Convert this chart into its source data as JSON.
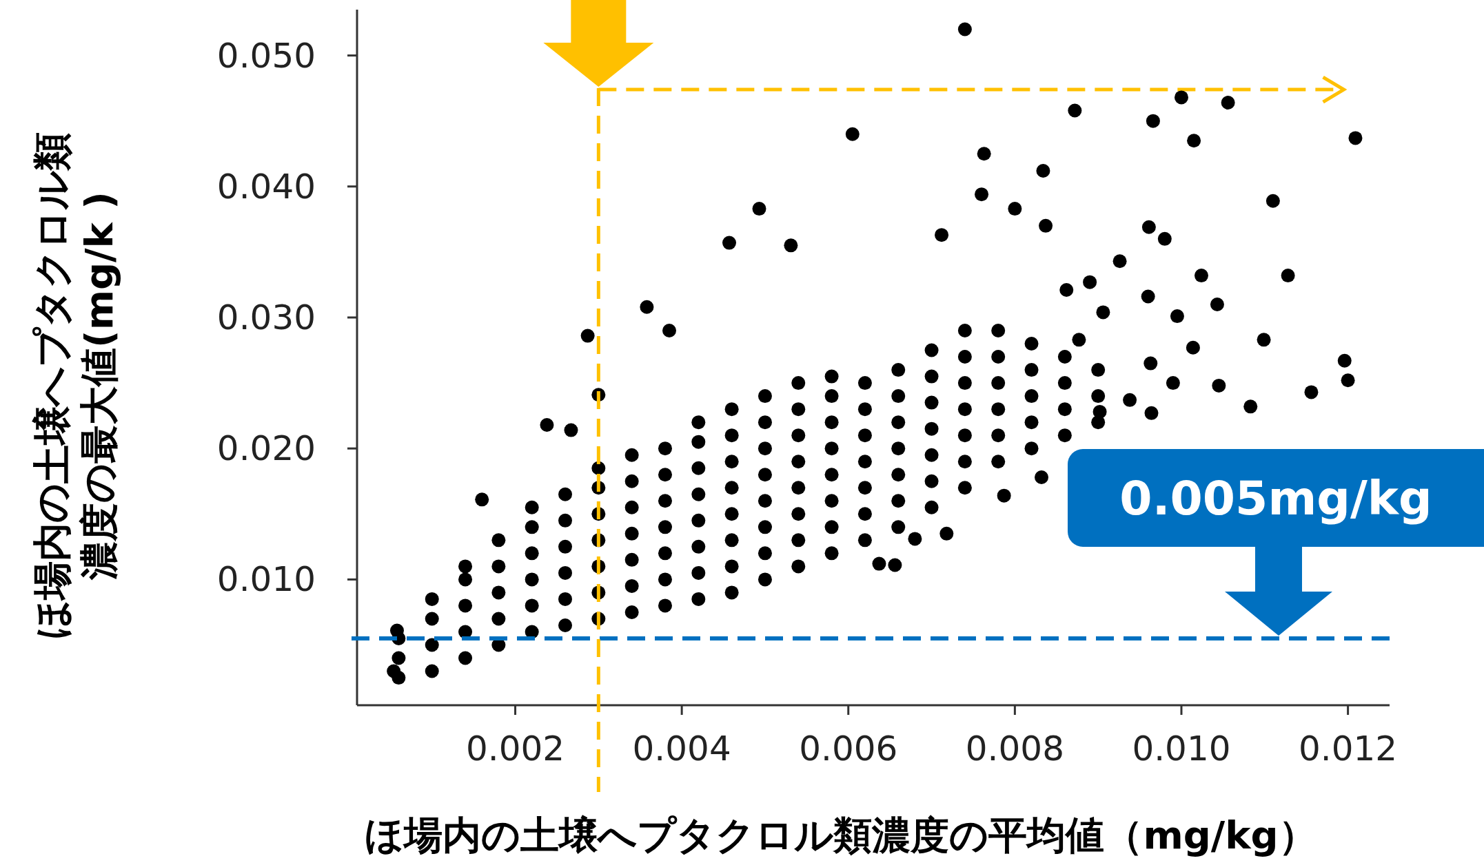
{
  "chart_data": {
    "type": "scatter",
    "xlabel": "ほ場内の土壌へプタクロル類濃度の平均値（mg/kg）",
    "ylabel": "ほ場内の土壌へプタクロル類濃度の最大値(mg/k )",
    "xlim": [
      0.0001,
      0.0125
    ],
    "ylim": [
      0.0004,
      0.0535
    ],
    "xticks": [
      {
        "value": 0.002,
        "label": "0.002"
      },
      {
        "value": 0.004,
        "label": "0.004"
      },
      {
        "value": 0.006,
        "label": "0.006"
      },
      {
        "value": 0.008,
        "label": "0.008"
      },
      {
        "value": 0.01,
        "label": "0.010"
      },
      {
        "value": 0.012,
        "label": "0.012"
      }
    ],
    "yticks": [
      {
        "value": 0.01,
        "label": "0.010"
      },
      {
        "value": 0.02,
        "label": "0.020"
      },
      {
        "value": 0.03,
        "label": "0.030"
      },
      {
        "value": 0.04,
        "label": "0.040"
      },
      {
        "value": 0.05,
        "label": "0.050"
      }
    ],
    "marker": "circle",
    "grid": false,
    "ref_lines": [
      {
        "axis": "y",
        "value": 0.0055,
        "label": "0.005mg/kg",
        "color": "#0070c0",
        "line_style": "dashed"
      },
      {
        "axis": "x",
        "value": 0.003,
        "color": "#ffc000",
        "line_style": "dashed"
      }
    ],
    "series": [
      {
        "type": "line",
        "color": "#ffc000",
        "line_style": "dashed",
        "marker": "none",
        "x": [
          0.003,
          0.01195
        ],
        "values": [
          0.0474,
          0.0474
        ]
      },
      {
        "color": "#000000",
        "x": [
          0.0074,
          0.00605,
          0.00763,
          0.00872,
          0.01,
          0.01056,
          0.00966,
          0.01015,
          0.01209,
          0.0076,
          0.00834,
          0.008,
          0.00493,
          0.0111,
          0.00457,
          0.00531,
          0.00961,
          0.0098,
          0.00712,
          0.00837,
          0.00926,
          0.01024,
          0.01128,
          0.01156,
          0.012,
          0.01196,
          0.01099,
          0.01083,
          0.01043,
          0.00995,
          0.0099,
          0.01045,
          0.01014,
          0.00963,
          0.0096,
          0.00906,
          0.0089,
          0.00862,
          0.00877,
          0.00902,
          0.00964,
          0.00938,
          0.00787,
          0.00832,
          0.00718,
          0.0068,
          0.00637,
          0.00656,
          0.00358,
          0.00385,
          0.00287,
          0.003,
          0.00238,
          0.00267,
          0.0016,
          0.00058,
          0.00054
        ],
        "values": [
          0.052,
          0.044,
          0.0425,
          0.0458,
          0.0468,
          0.0464,
          0.045,
          0.0435,
          0.0437,
          0.0394,
          0.0412,
          0.0383,
          0.0383,
          0.0389,
          0.0357,
          0.0355,
          0.0369,
          0.036,
          0.0363,
          0.037,
          0.0343,
          0.0332,
          0.0332,
          0.0243,
          0.0252,
          0.0267,
          0.0283,
          0.0232,
          0.031,
          0.0301,
          0.025,
          0.0248,
          0.0277,
          0.0265,
          0.0316,
          0.0304,
          0.0327,
          0.0321,
          0.0283,
          0.0228,
          0.0227,
          0.0237,
          0.0164,
          0.0178,
          0.0135,
          0.0131,
          0.0112,
          0.0111,
          0.0308,
          0.029,
          0.0286,
          0.0241,
          0.0218,
          0.0214,
          0.0161,
          0.0061,
          0.003
        ]
      },
      {
        "color": "#000000",
        "x": [
          0.0006,
          0.0006,
          0.0006
        ],
        "values": [
          0.0025,
          0.004,
          0.0055
        ]
      },
      {
        "color": "#000000",
        "x": [
          0.001,
          0.001,
          0.001,
          0.001
        ],
        "values": [
          0.003,
          0.005,
          0.007,
          0.0085
        ]
      },
      {
        "color": "#000000",
        "x": [
          0.0014,
          0.0014,
          0.0014,
          0.0014,
          0.0014
        ],
        "values": [
          0.004,
          0.006,
          0.008,
          0.01,
          0.011
        ]
      },
      {
        "color": "#000000",
        "x": [
          0.0018,
          0.0018,
          0.0018,
          0.0018,
          0.0018
        ],
        "values": [
          0.005,
          0.007,
          0.009,
          0.011,
          0.013
        ]
      },
      {
        "color": "#000000",
        "x": [
          0.0022,
          0.0022,
          0.0022,
          0.0022,
          0.0022,
          0.0022
        ],
        "values": [
          0.006,
          0.008,
          0.01,
          0.012,
          0.014,
          0.0155
        ]
      },
      {
        "color": "#000000",
        "x": [
          0.0026,
          0.0026,
          0.0026,
          0.0026,
          0.0026,
          0.0026
        ],
        "values": [
          0.0065,
          0.0085,
          0.0105,
          0.0125,
          0.0145,
          0.0165
        ]
      },
      {
        "color": "#000000",
        "x": [
          0.003,
          0.003,
          0.003,
          0.003,
          0.003,
          0.003,
          0.003
        ],
        "values": [
          0.007,
          0.009,
          0.011,
          0.013,
          0.015,
          0.017,
          0.0185
        ]
      },
      {
        "color": "#000000",
        "x": [
          0.0034,
          0.0034,
          0.0034,
          0.0034,
          0.0034,
          0.0034,
          0.0034
        ],
        "values": [
          0.0075,
          0.0095,
          0.0115,
          0.0135,
          0.0155,
          0.0175,
          0.0195
        ]
      },
      {
        "color": "#000000",
        "x": [
          0.0038,
          0.0038,
          0.0038,
          0.0038,
          0.0038,
          0.0038,
          0.0038
        ],
        "values": [
          0.008,
          0.01,
          0.012,
          0.014,
          0.016,
          0.018,
          0.02
        ]
      },
      {
        "color": "#000000",
        "x": [
          0.0042,
          0.0042,
          0.0042,
          0.0042,
          0.0042,
          0.0042,
          0.0042,
          0.0042
        ],
        "values": [
          0.0085,
          0.0105,
          0.0125,
          0.0145,
          0.0165,
          0.0185,
          0.0205,
          0.022
        ]
      },
      {
        "color": "#000000",
        "x": [
          0.0046,
          0.0046,
          0.0046,
          0.0046,
          0.0046,
          0.0046,
          0.0046,
          0.0046
        ],
        "values": [
          0.009,
          0.011,
          0.013,
          0.015,
          0.017,
          0.019,
          0.021,
          0.023
        ]
      },
      {
        "color": "#000000",
        "x": [
          0.005,
          0.005,
          0.005,
          0.005,
          0.005,
          0.005,
          0.005,
          0.005
        ],
        "values": [
          0.01,
          0.012,
          0.014,
          0.016,
          0.018,
          0.02,
          0.022,
          0.024
        ]
      },
      {
        "color": "#000000",
        "x": [
          0.0054,
          0.0054,
          0.0054,
          0.0054,
          0.0054,
          0.0054,
          0.0054,
          0.0054
        ],
        "values": [
          0.011,
          0.013,
          0.015,
          0.017,
          0.019,
          0.021,
          0.023,
          0.025
        ]
      },
      {
        "color": "#000000",
        "x": [
          0.0058,
          0.0058,
          0.0058,
          0.0058,
          0.0058,
          0.0058,
          0.0058,
          0.0058
        ],
        "values": [
          0.012,
          0.014,
          0.016,
          0.018,
          0.02,
          0.022,
          0.024,
          0.0255
        ]
      },
      {
        "color": "#000000",
        "x": [
          0.0062,
          0.0062,
          0.0062,
          0.0062,
          0.0062,
          0.0062,
          0.0062
        ],
        "values": [
          0.013,
          0.015,
          0.017,
          0.019,
          0.021,
          0.023,
          0.025
        ]
      },
      {
        "color": "#000000",
        "x": [
          0.0066,
          0.0066,
          0.0066,
          0.0066,
          0.0066,
          0.0066,
          0.0066
        ],
        "values": [
          0.014,
          0.016,
          0.018,
          0.02,
          0.022,
          0.024,
          0.026
        ]
      },
      {
        "color": "#000000",
        "x": [
          0.007,
          0.007,
          0.007,
          0.007,
          0.007,
          0.007,
          0.007
        ],
        "values": [
          0.0155,
          0.0175,
          0.0195,
          0.0215,
          0.0235,
          0.0255,
          0.0275
        ]
      },
      {
        "color": "#000000",
        "x": [
          0.0074,
          0.0074,
          0.0074,
          0.0074,
          0.0074,
          0.0074,
          0.0074
        ],
        "values": [
          0.017,
          0.019,
          0.021,
          0.023,
          0.025,
          0.027,
          0.029
        ]
      },
      {
        "color": "#000000",
        "x": [
          0.0078,
          0.0078,
          0.0078,
          0.0078,
          0.0078,
          0.0078
        ],
        "values": [
          0.019,
          0.021,
          0.023,
          0.025,
          0.027,
          0.029
        ]
      },
      {
        "color": "#000000",
        "x": [
          0.0082,
          0.0082,
          0.0082,
          0.0082,
          0.0082
        ],
        "values": [
          0.02,
          0.022,
          0.024,
          0.026,
          0.028
        ]
      },
      {
        "color": "#000000",
        "x": [
          0.0086,
          0.0086,
          0.0086,
          0.0086
        ],
        "values": [
          0.021,
          0.023,
          0.025,
          0.027
        ]
      },
      {
        "color": "#000000",
        "x": [
          0.009,
          0.009,
          0.009
        ],
        "values": [
          0.022,
          0.024,
          0.026
        ]
      }
    ]
  }
}
